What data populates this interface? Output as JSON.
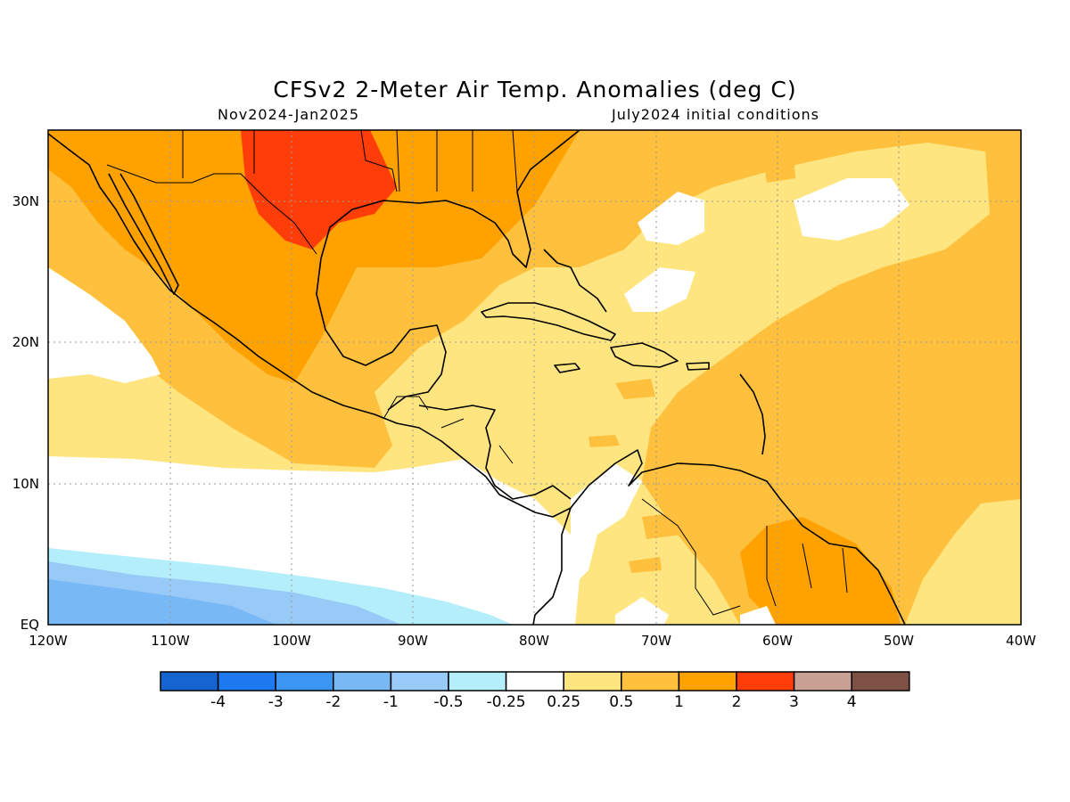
{
  "title": "CFSv2 2-Meter Air Temp. Anomalies (deg C)",
  "subtitle_left": "Nov2024-Jan2025",
  "subtitle_right": "July2024 initial conditions",
  "map": {
    "region": "Gulf of Mexico, Caribbean and northern South America",
    "lon_range": [
      -120,
      -40
    ],
    "lat_range": [
      0,
      35
    ],
    "lat_ticks": [
      "30N",
      "20N",
      "10N",
      "EQ"
    ],
    "lon_ticks": [
      "120W",
      "110W",
      "100W",
      "90W",
      "80W",
      "70W",
      "60W",
      "50W",
      "40W"
    ],
    "gridlines": "dotted"
  },
  "colorbar": {
    "labels": [
      "-4",
      "-3",
      "-2",
      "-1",
      "-0.5",
      "-0.25",
      "0.25",
      "0.5",
      "1",
      "2",
      "3",
      "4"
    ],
    "colors": [
      "#1664d0",
      "#1e78ef",
      "#3b96f2",
      "#78b8f5",
      "#98caf7",
      "#b5eefb",
      "#ffffff",
      "#ffe580",
      "#ffc13d",
      "#ffa200",
      "#ff3d08",
      "#c8a194",
      "#7f5045"
    ]
  }
}
